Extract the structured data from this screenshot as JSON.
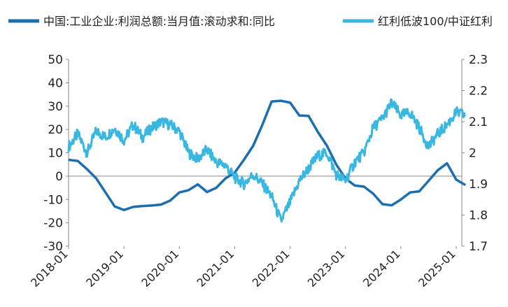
{
  "chart_data": {
    "type": "line",
    "title": "",
    "legend_position": "top",
    "grid": false,
    "x_axis": {
      "ticks": [
        "2018-01",
        "2019-01",
        "2020-01",
        "2021-01",
        "2022-01",
        "2023-01",
        "2024-01",
        "2025-01"
      ],
      "range": [
        "2018-01",
        "2025-01"
      ]
    },
    "y_left": {
      "range": [
        -30,
        50
      ],
      "ticks": [
        -30,
        -20,
        -10,
        0,
        10,
        20,
        30,
        40,
        50
      ]
    },
    "y_right": {
      "range": [
        1.7,
        2.3
      ],
      "ticks": [
        "1.7",
        "1.8",
        "1.9",
        "2",
        "2.1",
        "2.2",
        "2.3"
      ]
    },
    "series": [
      {
        "name": "中国:工业企业:利润总额:当月值:滚动求和:同比",
        "axis": "left",
        "color": "#1a6fb0",
        "points": [
          [
            "2018-01",
            7
          ],
          [
            "2018-03",
            6.5
          ],
          [
            "2018-05",
            3
          ],
          [
            "2018-07",
            -1
          ],
          [
            "2018-09",
            -7
          ],
          [
            "2018-11",
            -13
          ],
          [
            "2019-01",
            -14.5
          ],
          [
            "2019-03",
            -13.2
          ],
          [
            "2019-05",
            -12.8
          ],
          [
            "2019-07",
            -12.6
          ],
          [
            "2019-09",
            -12.2
          ],
          [
            "2019-11",
            -10.5
          ],
          [
            "2020-01",
            -7
          ],
          [
            "2020-03",
            -6
          ],
          [
            "2020-05",
            -3.5
          ],
          [
            "2020-07",
            -6.8
          ],
          [
            "2020-09",
            -5
          ],
          [
            "2020-11",
            -1
          ],
          [
            "2021-01",
            1.5
          ],
          [
            "2021-03",
            7
          ],
          [
            "2021-05",
            13
          ],
          [
            "2021-07",
            22
          ],
          [
            "2021-09",
            32
          ],
          [
            "2021-11",
            32.3
          ],
          [
            "2022-01",
            31.5
          ],
          [
            "2022-03",
            26
          ],
          [
            "2022-05",
            25.8
          ],
          [
            "2022-07",
            19
          ],
          [
            "2022-09",
            13
          ],
          [
            "2022-11",
            5
          ],
          [
            "2023-01",
            -1
          ],
          [
            "2023-03",
            -4
          ],
          [
            "2023-05",
            -4.5
          ],
          [
            "2023-07",
            -7.5
          ],
          [
            "2023-09",
            -12
          ],
          [
            "2023-11",
            -12.5
          ],
          [
            "2024-01",
            -10
          ],
          [
            "2024-03",
            -7
          ],
          [
            "2024-05",
            -6.5
          ],
          [
            "2024-07",
            -2
          ],
          [
            "2024-09",
            2.5
          ],
          [
            "2024-11",
            5.5
          ],
          [
            "2025-01",
            -1.5
          ],
          [
            "2025-03",
            -3.8
          ]
        ]
      },
      {
        "name": "红利低波100/中证红利",
        "axis": "right",
        "color": "#38b7e1",
        "points": [
          [
            "2018-01",
            2.02
          ],
          [
            "2018-03",
            2.06
          ],
          [
            "2018-05",
            2.0
          ],
          [
            "2018-07",
            2.07
          ],
          [
            "2018-09",
            2.05
          ],
          [
            "2018-11",
            2.08
          ],
          [
            "2019-01",
            2.04
          ],
          [
            "2019-03",
            2.09
          ],
          [
            "2019-05",
            2.05
          ],
          [
            "2019-07",
            2.08
          ],
          [
            "2019-09",
            2.1
          ],
          [
            "2019-11",
            2.09
          ],
          [
            "2020-01",
            2.07
          ],
          [
            "2020-03",
            2.0
          ],
          [
            "2020-05",
            1.98
          ],
          [
            "2020-07",
            2.01
          ],
          [
            "2020-09",
            1.97
          ],
          [
            "2020-11",
            1.96
          ],
          [
            "2021-01",
            1.92
          ],
          [
            "2021-03",
            1.9
          ],
          [
            "2021-05",
            1.93
          ],
          [
            "2021-07",
            1.9
          ],
          [
            "2021-09",
            1.86
          ],
          [
            "2021-11",
            1.78
          ],
          [
            "2022-01",
            1.84
          ],
          [
            "2022-03",
            1.91
          ],
          [
            "2022-05",
            1.95
          ],
          [
            "2022-07",
            1.99
          ],
          [
            "2022-09",
            2.0
          ],
          [
            "2022-11",
            1.93
          ],
          [
            "2023-01",
            1.91
          ],
          [
            "2023-03",
            1.97
          ],
          [
            "2023-05",
            2.0
          ],
          [
            "2023-07",
            2.08
          ],
          [
            "2023-09",
            2.11
          ],
          [
            "2023-11",
            2.16
          ],
          [
            "2024-01",
            2.12
          ],
          [
            "2024-03",
            2.13
          ],
          [
            "2024-05",
            2.08
          ],
          [
            "2024-07",
            2.02
          ],
          [
            "2024-09",
            2.06
          ],
          [
            "2024-11",
            2.09
          ],
          [
            "2025-01",
            2.13
          ],
          [
            "2025-03",
            2.12
          ]
        ]
      }
    ]
  }
}
